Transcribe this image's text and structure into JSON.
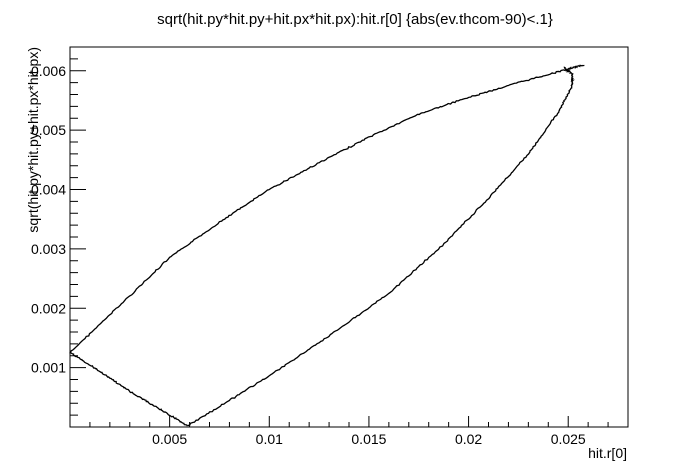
{
  "chart_data": {
    "type": "scatter",
    "title": "sqrt(hit.py*hit.py+hit.px*hit.px):hit.r[0] {abs(ev.thcom-90)<.1}",
    "xlabel": "hit.r[0]",
    "ylabel": "sqrt(hit.py*hit.py+hit.px*hit.px)",
    "xlim": [
      0.0,
      0.028
    ],
    "ylim": [
      0.0,
      0.0064
    ],
    "x_ticks": [
      {
        "value": 0.005,
        "label": "0.005"
      },
      {
        "value": 0.01,
        "label": "0.01"
      },
      {
        "value": 0.015,
        "label": "0.015"
      },
      {
        "value": 0.02,
        "label": "0.02"
      },
      {
        "value": 0.025,
        "label": "0.025"
      }
    ],
    "y_ticks": [
      {
        "value": 0.001,
        "label": "0.001"
      },
      {
        "value": 0.002,
        "label": "0.002"
      },
      {
        "value": 0.003,
        "label": "0.003"
      },
      {
        "value": 0.004,
        "label": "0.004"
      },
      {
        "value": 0.005,
        "label": "0.005"
      },
      {
        "value": 0.006,
        "label": "0.006"
      }
    ],
    "grid": false,
    "legend": "none",
    "marker_color": "#000000",
    "series": [
      {
        "values": [
          [
            0.0,
            0.00125
          ],
          [
            0.0025,
            0.00205
          ],
          [
            0.005,
            0.00285
          ],
          [
            0.0075,
            0.00345
          ],
          [
            0.01,
            0.004
          ],
          [
            0.0125,
            0.00445
          ],
          [
            0.015,
            0.00488
          ],
          [
            0.0175,
            0.00527
          ],
          [
            0.02,
            0.00555
          ],
          [
            0.0225,
            0.0058
          ],
          [
            0.025,
            0.00603
          ],
          [
            0.0258,
            0.0061
          ]
        ]
      },
      {
        "values": [
          [
            0.0,
            0.00125
          ],
          [
            0.0015,
            0.00094
          ],
          [
            0.003,
            0.0006
          ],
          [
            0.0045,
            0.0003
          ],
          [
            0.0059,
            2e-05
          ]
        ]
      },
      {
        "values": [
          [
            0.0059,
            2e-05
          ],
          [
            0.0085,
            0.00055
          ],
          [
            0.011,
            0.00108
          ],
          [
            0.0135,
            0.00165
          ],
          [
            0.016,
            0.00225
          ],
          [
            0.0185,
            0.003
          ],
          [
            0.021,
            0.00385
          ],
          [
            0.023,
            0.0046
          ],
          [
            0.0245,
            0.0053
          ],
          [
            0.0252,
            0.00575
          ],
          [
            0.0252,
            0.00595
          ],
          [
            0.0248,
            0.00605
          ]
        ]
      }
    ]
  }
}
